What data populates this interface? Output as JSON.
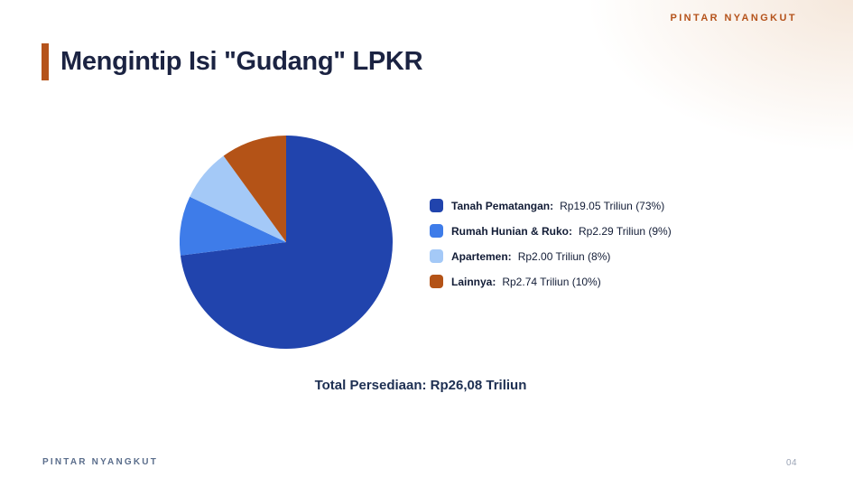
{
  "brand": {
    "name": "PINTAR NYANGKUT"
  },
  "title": "Mengintip Isi \"Gudang\" LPKR",
  "page_number": "04",
  "colors": {
    "accent-orange": "#b5531b",
    "title-navy": "#1b2342",
    "legend-text": "#121c36",
    "total-text": "#1d2f52",
    "footer-text": "#5b6e8c",
    "page-number-text": "#9aa3b5",
    "bg": "#ffffff"
  },
  "chart_data": {
    "type": "pie",
    "title": "Mengintip Isi \"Gudang\" LPKR",
    "unit": "Rp Triliun",
    "start_angle": "top",
    "direction": "clockwise",
    "legend_position": "right",
    "total_label": "Total Persediaan: Rp26,08 Triliun",
    "total_value_triliun": 26.08,
    "slices": [
      {
        "id": "tanah-pematangan",
        "label": "Tanah Pematangan",
        "value_triliun": 19.05,
        "percent": 73,
        "color": "#2144ad",
        "legend_value": "Rp19.05 Triliun (73%)"
      },
      {
        "id": "rumah-hunian-ruko",
        "label": "Rumah Hunian & Ruko",
        "value_triliun": 2.29,
        "percent": 9,
        "color": "#3e7ce9",
        "legend_value": "Rp2.29 Triliun (9%)"
      },
      {
        "id": "apartemen",
        "label": "Apartemen",
        "value_triliun": 2.0,
        "percent": 8,
        "color": "#a4c9f7",
        "legend_value": "Rp2.00 Triliun (8%)"
      },
      {
        "id": "lainnya",
        "label": "Lainnya",
        "value_triliun": 2.74,
        "percent": 10,
        "color": "#b45317",
        "legend_value": "Rp2.74 Triliun (10%)"
      }
    ]
  }
}
